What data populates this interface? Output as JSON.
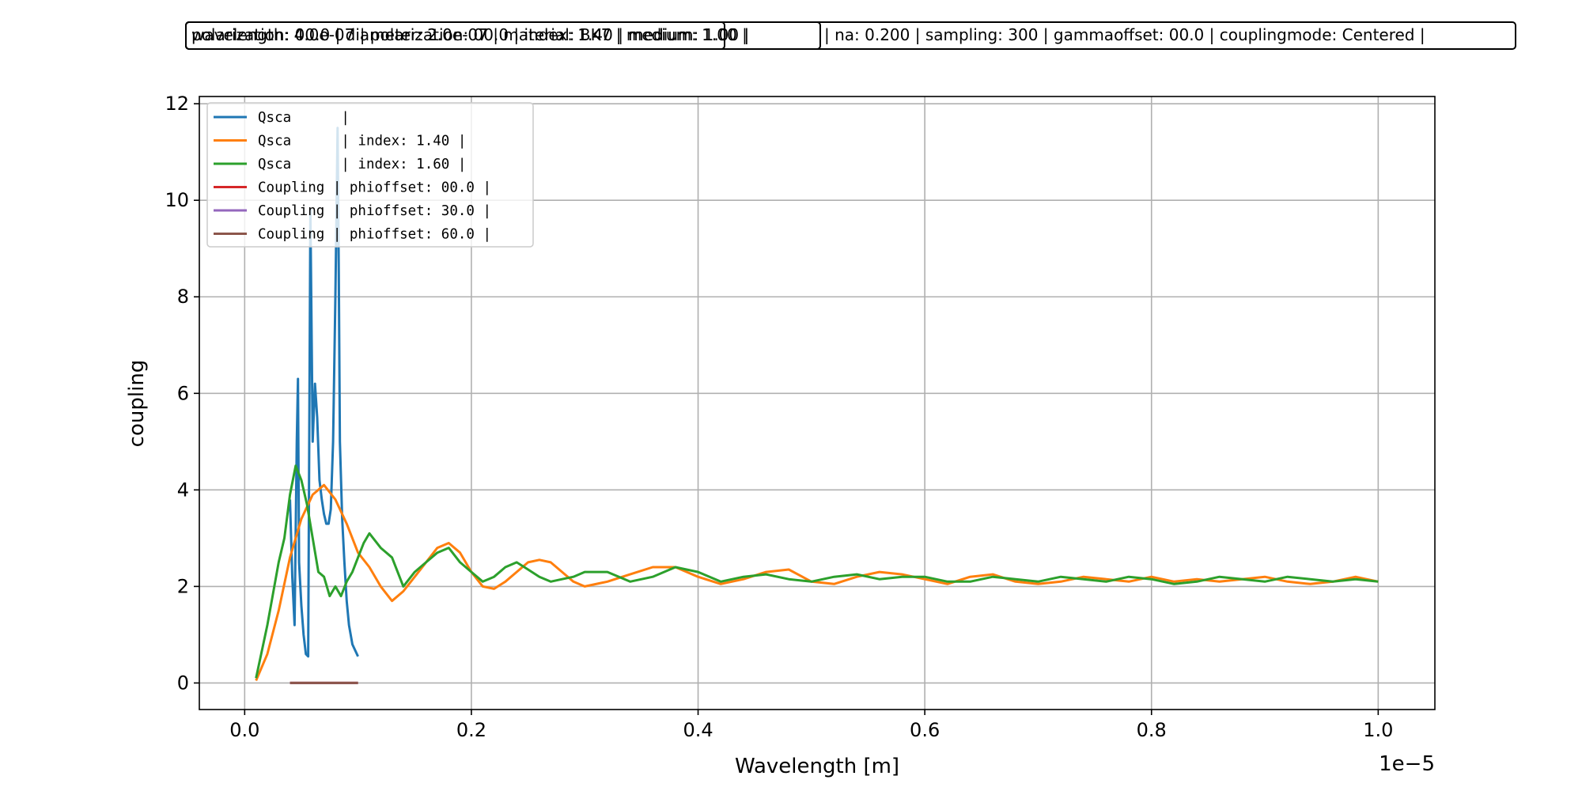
{
  "header_boxes": [
    {
      "text": "polarization: 00.0 | diameter: 2.0e-07 | material: BK7 | medium: 1.00 |"
    },
    {
      "text": "wavelength: 4.0e-07 | polarization: 00.0 | index: 1.40 | medium: 1.00 |"
    },
    {
      "text": "| na: 0.200 | sampling: 300 | gammaoffset: 00.0 | couplingmode: Centered   |"
    }
  ],
  "chart_data": {
    "type": "line",
    "title": "",
    "xlabel": "Wavelength [m]",
    "ylabel": "coupling",
    "x_offset_text": "1e−5",
    "xlim": [
      -0.04,
      1.05
    ],
    "ylim": [
      -0.55,
      12.15
    ],
    "x_scale_factor": 1e-05,
    "xticks": [
      0.0,
      0.2,
      0.4,
      0.6,
      0.8,
      1.0
    ],
    "xtick_labels": [
      "0.0",
      "0.2",
      "0.4",
      "0.6",
      "0.8",
      "1.0"
    ],
    "yticks": [
      0,
      2,
      4,
      6,
      8,
      10,
      12
    ],
    "ytick_labels": [
      "0",
      "2",
      "4",
      "6",
      "8",
      "10",
      "12"
    ],
    "grid": true,
    "legend_position": "top-left",
    "series": [
      {
        "name": "Qsca      |",
        "color": "#1f77b4",
        "x": [
          0.04,
          0.042,
          0.044,
          0.046,
          0.047,
          0.048,
          0.05,
          0.052,
          0.054,
          0.056,
          0.058,
          0.06,
          0.062,
          0.064,
          0.066,
          0.068,
          0.07,
          0.072,
          0.074,
          0.076,
          0.078,
          0.08,
          0.082,
          0.083,
          0.084,
          0.086,
          0.088,
          0.09,
          0.092,
          0.095,
          0.1
        ],
        "y": [
          3.8,
          2.2,
          1.2,
          5.0,
          6.3,
          2.5,
          1.6,
          1.0,
          0.6,
          0.55,
          9.8,
          5.0,
          6.2,
          5.5,
          4.2,
          3.8,
          3.5,
          3.3,
          3.3,
          3.6,
          5.0,
          8.0,
          11.5,
          8.5,
          5.0,
          3.4,
          2.5,
          1.7,
          1.2,
          0.8,
          0.55
        ]
      },
      {
        "name": "Qsca      | index: 1.40 |",
        "color": "#ff7f0e",
        "x": [
          0.01,
          0.02,
          0.03,
          0.04,
          0.05,
          0.06,
          0.07,
          0.08,
          0.09,
          0.1,
          0.11,
          0.12,
          0.13,
          0.14,
          0.15,
          0.16,
          0.17,
          0.18,
          0.19,
          0.2,
          0.21,
          0.22,
          0.23,
          0.24,
          0.25,
          0.26,
          0.27,
          0.28,
          0.29,
          0.3,
          0.32,
          0.34,
          0.36,
          0.38,
          0.4,
          0.42,
          0.44,
          0.46,
          0.48,
          0.5,
          0.52,
          0.54,
          0.56,
          0.58,
          0.6,
          0.62,
          0.64,
          0.66,
          0.68,
          0.7,
          0.72,
          0.74,
          0.76,
          0.78,
          0.8,
          0.82,
          0.84,
          0.86,
          0.88,
          0.9,
          0.92,
          0.94,
          0.96,
          0.98,
          1.0
        ],
        "y": [
          0.05,
          0.6,
          1.5,
          2.6,
          3.4,
          3.9,
          4.1,
          3.8,
          3.3,
          2.7,
          2.4,
          2.0,
          1.7,
          1.9,
          2.2,
          2.5,
          2.8,
          2.9,
          2.7,
          2.3,
          2.0,
          1.95,
          2.1,
          2.3,
          2.5,
          2.55,
          2.5,
          2.3,
          2.1,
          2.0,
          2.1,
          2.25,
          2.4,
          2.4,
          2.2,
          2.05,
          2.15,
          2.3,
          2.35,
          2.1,
          2.05,
          2.2,
          2.3,
          2.25,
          2.15,
          2.05,
          2.2,
          2.25,
          2.1,
          2.05,
          2.1,
          2.2,
          2.15,
          2.1,
          2.2,
          2.1,
          2.15,
          2.1,
          2.15,
          2.2,
          2.1,
          2.05,
          2.1,
          2.2,
          2.1
        ]
      },
      {
        "name": "Qsca      | index: 1.60 |",
        "color": "#2ca02c",
        "x": [
          0.01,
          0.02,
          0.03,
          0.035,
          0.04,
          0.045,
          0.05,
          0.055,
          0.06,
          0.065,
          0.07,
          0.075,
          0.08,
          0.085,
          0.09,
          0.095,
          0.1,
          0.105,
          0.11,
          0.12,
          0.13,
          0.14,
          0.15,
          0.16,
          0.17,
          0.18,
          0.19,
          0.2,
          0.21,
          0.22,
          0.23,
          0.24,
          0.25,
          0.26,
          0.27,
          0.28,
          0.29,
          0.3,
          0.32,
          0.34,
          0.36,
          0.38,
          0.4,
          0.42,
          0.44,
          0.46,
          0.48,
          0.5,
          0.52,
          0.54,
          0.56,
          0.58,
          0.6,
          0.62,
          0.64,
          0.66,
          0.68,
          0.7,
          0.72,
          0.74,
          0.76,
          0.78,
          0.8,
          0.82,
          0.84,
          0.86,
          0.88,
          0.9,
          0.92,
          0.94,
          0.96,
          0.98,
          1.0
        ],
        "y": [
          0.1,
          1.2,
          2.5,
          3.0,
          3.9,
          4.5,
          4.2,
          3.7,
          3.0,
          2.3,
          2.2,
          1.8,
          2.0,
          1.8,
          2.1,
          2.3,
          2.6,
          2.9,
          3.1,
          2.8,
          2.6,
          2.0,
          2.3,
          2.5,
          2.7,
          2.8,
          2.5,
          2.3,
          2.1,
          2.2,
          2.4,
          2.5,
          2.35,
          2.2,
          2.1,
          2.15,
          2.2,
          2.3,
          2.3,
          2.1,
          2.2,
          2.4,
          2.3,
          2.1,
          2.2,
          2.25,
          2.15,
          2.1,
          2.2,
          2.25,
          2.15,
          2.2,
          2.2,
          2.1,
          2.1,
          2.2,
          2.15,
          2.1,
          2.2,
          2.15,
          2.1,
          2.2,
          2.15,
          2.05,
          2.1,
          2.2,
          2.15,
          2.1,
          2.2,
          2.15,
          2.1,
          2.15,
          2.1
        ]
      },
      {
        "name": "Coupling | phioffset: 00.0 |",
        "color": "#d62728",
        "x": [
          0.04,
          0.1
        ],
        "y": [
          0.0,
          0.0
        ]
      },
      {
        "name": "Coupling | phioffset: 30.0 |",
        "color": "#9467bd",
        "x": [
          0.04,
          0.1
        ],
        "y": [
          0.0,
          0.0
        ]
      },
      {
        "name": "Coupling | phioffset: 60.0 |",
        "color": "#8c564b",
        "x": [
          0.04,
          0.1
        ],
        "y": [
          0.0,
          0.0
        ]
      }
    ]
  }
}
